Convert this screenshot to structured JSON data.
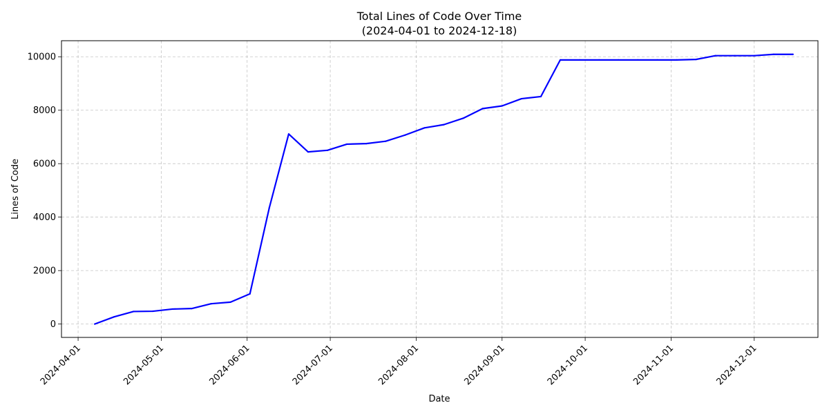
{
  "chart_data": {
    "type": "line",
    "title": "Total Lines of Code Over Time",
    "subtitle": "(2024-04-01 to 2024-12-18)",
    "xlabel": "Date",
    "ylabel": "Lines of Code",
    "xlim": [
      "2024-03-26",
      "2024-12-24"
    ],
    "ylim": [
      -500,
      10600
    ],
    "grid": true,
    "x_ticks": [
      "2024-04-01",
      "2024-05-01",
      "2024-06-01",
      "2024-07-01",
      "2024-08-01",
      "2024-09-01",
      "2024-10-01",
      "2024-11-01",
      "2024-12-01"
    ],
    "y_ticks": [
      0,
      2000,
      4000,
      6000,
      8000,
      10000
    ],
    "series": [
      {
        "color": "#0000ff",
        "x": [
          "2024-04-07",
          "2024-04-14",
          "2024-04-21",
          "2024-04-28",
          "2024-05-05",
          "2024-05-12",
          "2024-05-19",
          "2024-05-26",
          "2024-06-02",
          "2024-06-09",
          "2024-06-16",
          "2024-06-23",
          "2024-06-30",
          "2024-07-07",
          "2024-07-14",
          "2024-07-21",
          "2024-07-28",
          "2024-08-04",
          "2024-08-11",
          "2024-08-18",
          "2024-08-25",
          "2024-09-01",
          "2024-09-08",
          "2024-09-15",
          "2024-09-22",
          "2024-09-29",
          "2024-10-06",
          "2024-10-13",
          "2024-10-20",
          "2024-10-27",
          "2024-11-03",
          "2024-11-10",
          "2024-11-17",
          "2024-11-24",
          "2024-12-01",
          "2024-12-08",
          "2024-12-15"
        ],
        "values": [
          0,
          270,
          470,
          480,
          560,
          580,
          760,
          820,
          1130,
          4350,
          7110,
          6440,
          6500,
          6730,
          6750,
          6840,
          7070,
          7340,
          7460,
          7700,
          8060,
          8160,
          8430,
          8510,
          9880,
          9880,
          9880,
          9880,
          9880,
          9880,
          9880,
          9900,
          10040,
          10040,
          10040,
          10090,
          10090
        ]
      }
    ]
  }
}
